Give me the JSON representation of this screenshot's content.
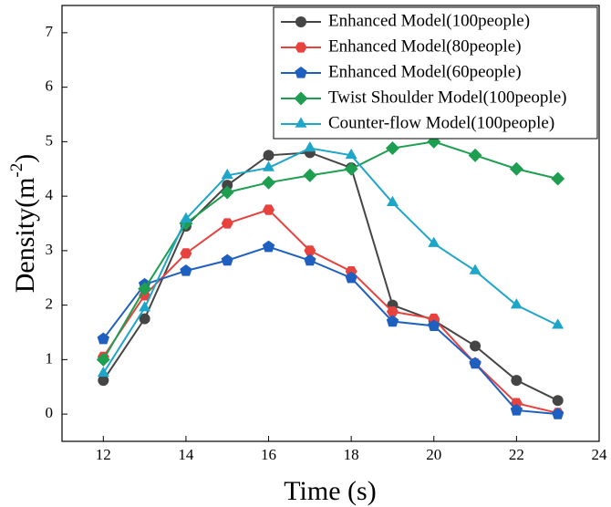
{
  "chart_data": {
    "type": "line",
    "x_label": "Time (s)",
    "y_label": {
      "text": "Density(m",
      "superscript": "-2",
      "suffix": ")"
    },
    "x": [
      12,
      13,
      14,
      15,
      16,
      17,
      18,
      19,
      20,
      21,
      22,
      23
    ],
    "xlim": [
      11,
      24
    ],
    "xticks": [
      12,
      14,
      16,
      18,
      20,
      22,
      24
    ],
    "ylim": [
      -0.5,
      7.5
    ],
    "yticks": [
      0,
      1,
      2,
      3,
      4,
      5,
      6,
      7
    ],
    "legend": "upper right",
    "series": [
      {
        "name": "Enhanced Model(100people)",
        "color": "#454545",
        "marker": "circle",
        "values": [
          0.62,
          1.75,
          3.45,
          4.2,
          4.75,
          4.8,
          4.52,
          2.0,
          1.72,
          1.25,
          0.62,
          0.25
        ]
      },
      {
        "name": "Enhanced Model(80people)",
        "color": "#e8423f",
        "marker": "hexagon",
        "values": [
          1.05,
          2.18,
          2.95,
          3.5,
          3.75,
          3.0,
          2.62,
          1.88,
          1.75,
          0.93,
          0.2,
          0.02
        ]
      },
      {
        "name": "Enhanced Model(60people)",
        "color": "#1f5fbf",
        "marker": "pentagon",
        "values": [
          1.38,
          2.38,
          2.63,
          2.82,
          3.07,
          2.82,
          2.5,
          1.7,
          1.62,
          0.93,
          0.07,
          0.0
        ]
      },
      {
        "name": "Twist Shoulder Model(100people)",
        "color": "#1e9e50",
        "marker": "diamond",
        "values": [
          1.0,
          2.3,
          3.5,
          4.07,
          4.25,
          4.38,
          4.5,
          4.88,
          5.0,
          4.75,
          4.5,
          4.32
        ]
      },
      {
        "name": "Counter-flow Model(100people)",
        "color": "#1ea6c8",
        "marker": "triangle",
        "values": [
          0.75,
          1.95,
          3.58,
          4.38,
          4.52,
          4.88,
          4.75,
          3.88,
          3.13,
          2.63,
          2.0,
          1.63
        ]
      }
    ]
  }
}
